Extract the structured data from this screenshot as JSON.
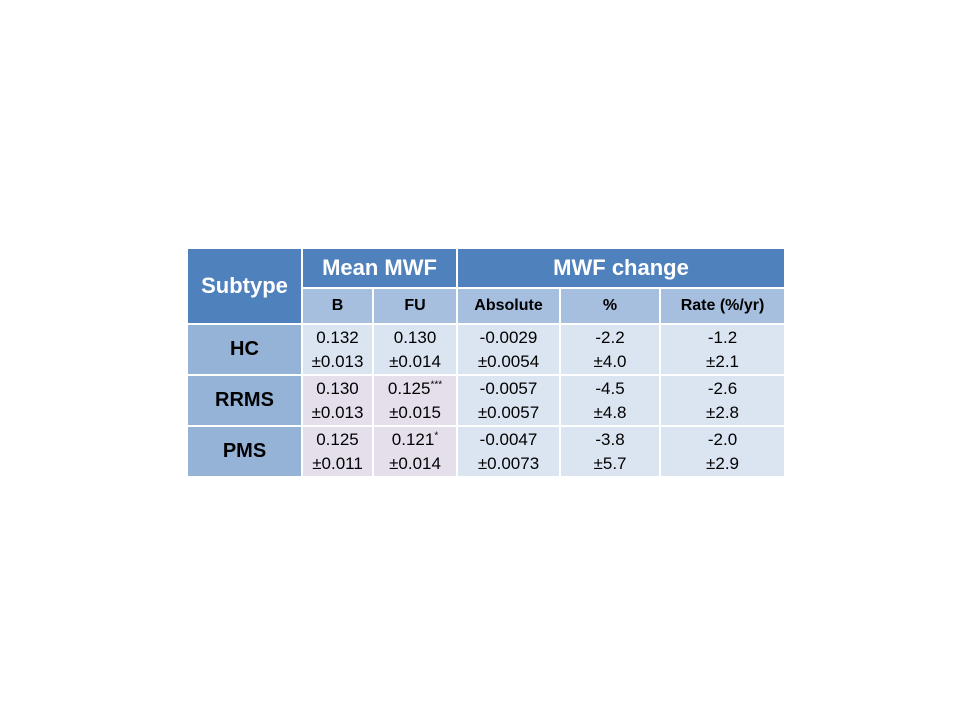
{
  "table": {
    "header": {
      "row_label": "Subtype",
      "groups": [
        "Mean MWF",
        "MWF change"
      ],
      "columns": [
        "B",
        "FU",
        "Absolute",
        "%",
        "Rate (%/yr)"
      ]
    },
    "rows": [
      {
        "label": "HC",
        "cells": [
          {
            "value": "0.132",
            "sd": "±0.013"
          },
          {
            "value": "0.130",
            "sd": "±0.014"
          },
          {
            "value": "-0.0029",
            "sd": "±0.0054"
          },
          {
            "value": "-2.2",
            "sd": "±4.0"
          },
          {
            "value": "-1.2",
            "sd": "±2.1"
          }
        ]
      },
      {
        "label": "RRMS",
        "cells": [
          {
            "value": "0.130",
            "sd": "±0.013"
          },
          {
            "value": "0.125",
            "sup": "***",
            "sd": "±0.015"
          },
          {
            "value": "-0.0057",
            "sd": "±0.0057"
          },
          {
            "value": "-4.5",
            "sd": "±4.8"
          },
          {
            "value": "-2.6",
            "sd": "±2.8"
          }
        ]
      },
      {
        "label": "PMS",
        "cells": [
          {
            "value": "0.125",
            "sd": "±0.011"
          },
          {
            "value": "0.121",
            "sup": "*",
            "sd": "±0.014"
          },
          {
            "value": "-0.0047",
            "sd": "±0.0073"
          },
          {
            "value": "-3.8",
            "sd": "±5.7"
          },
          {
            "value": "-2.0",
            "sd": "±2.9"
          }
        ]
      }
    ]
  }
}
